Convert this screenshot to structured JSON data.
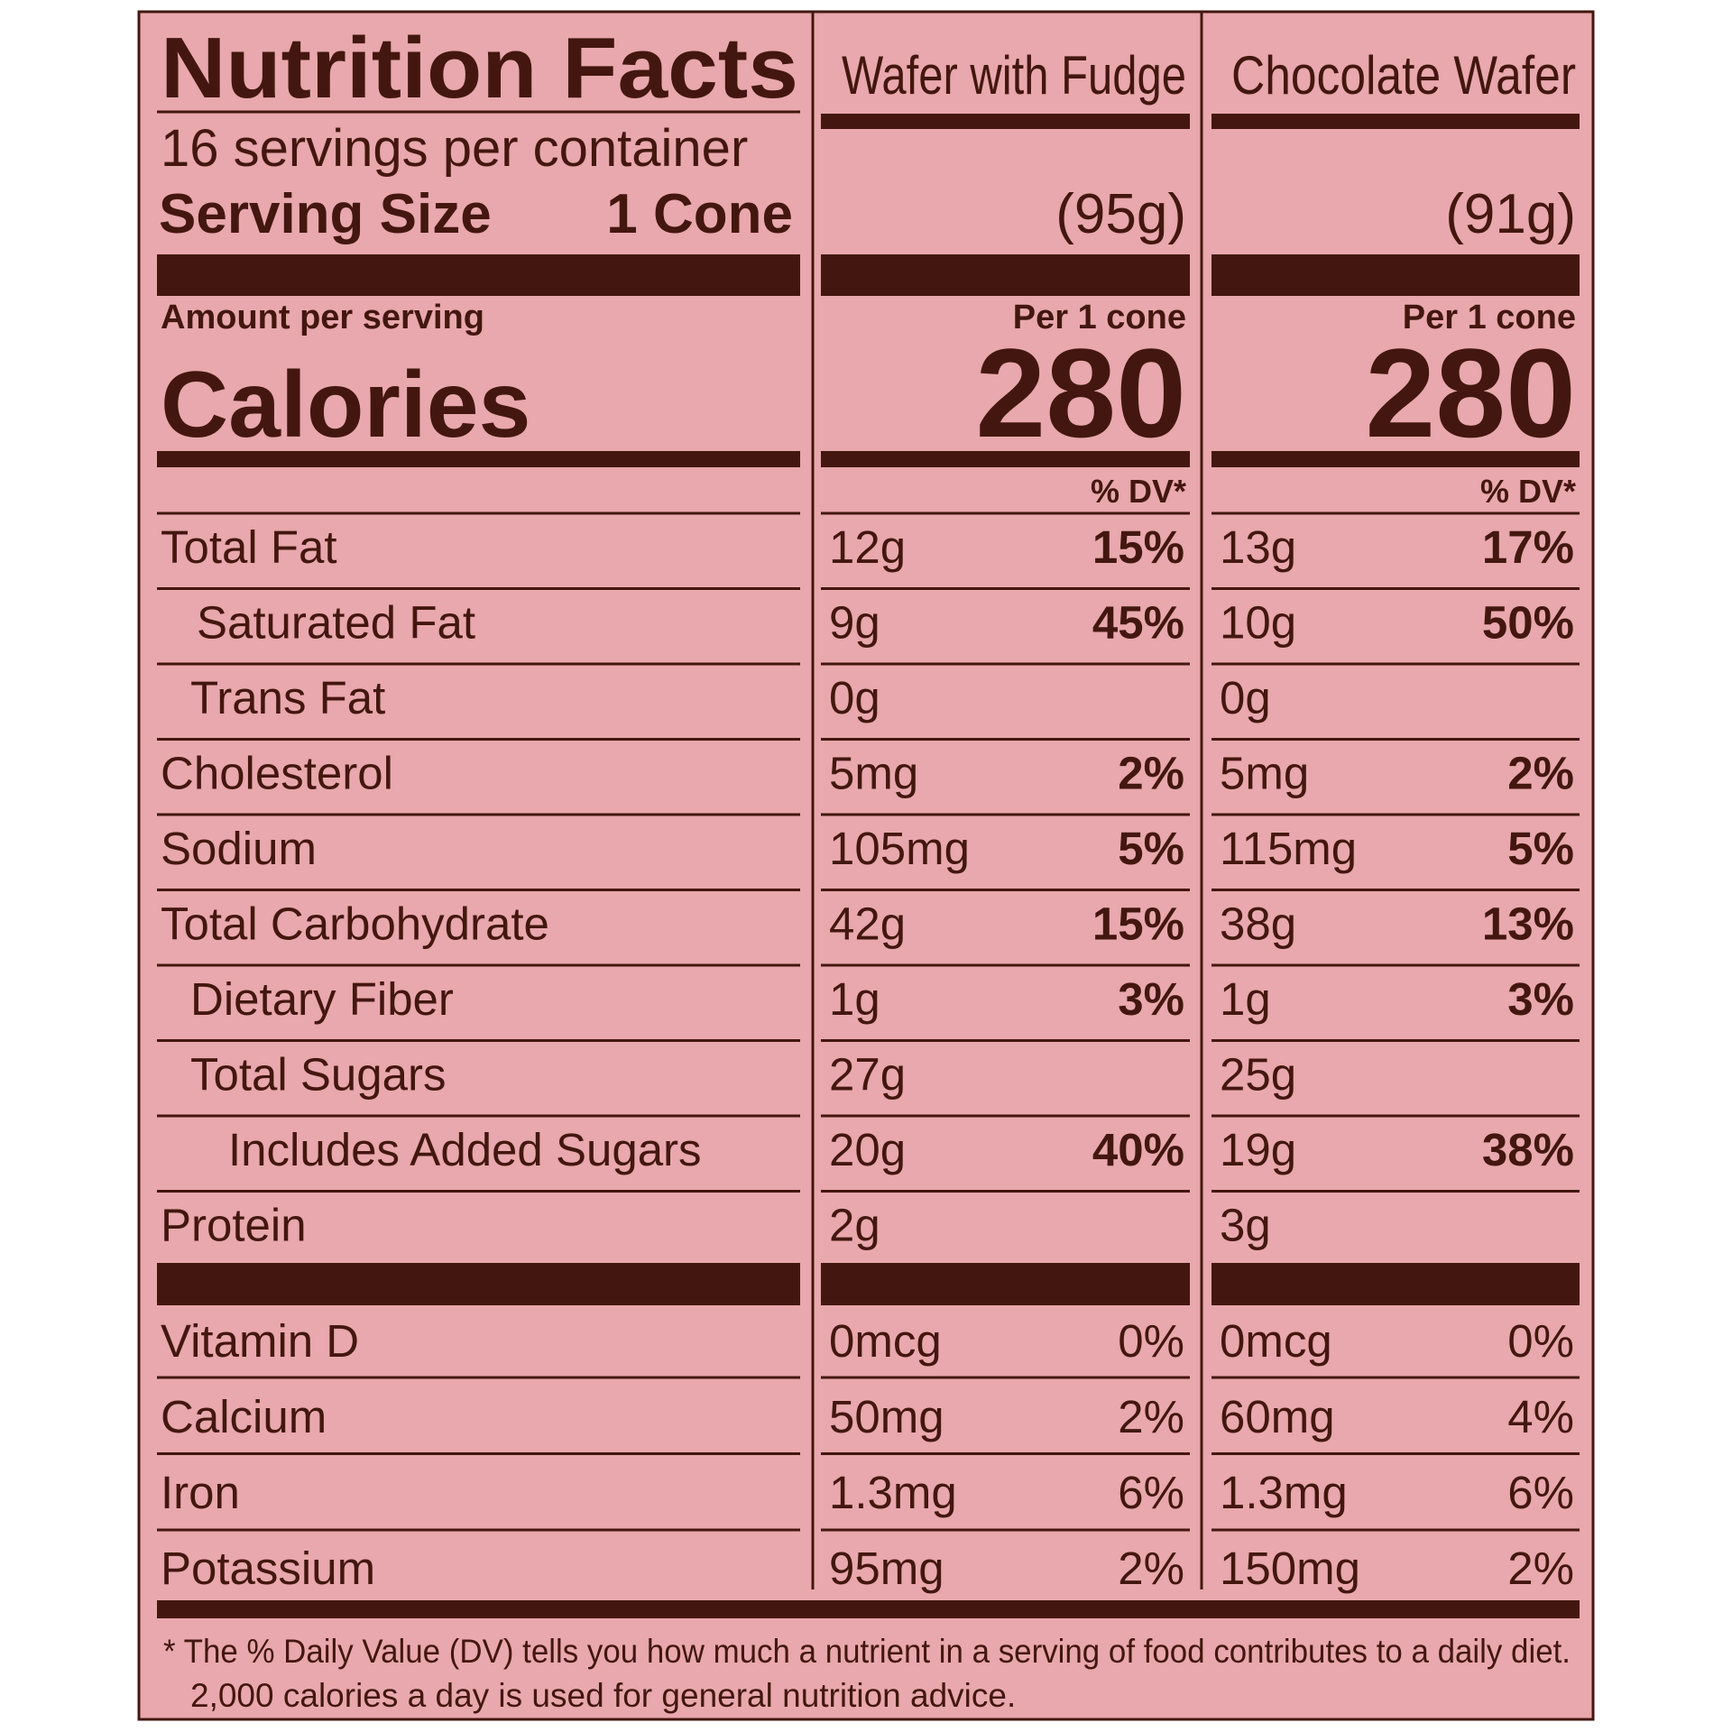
{
  "header": {
    "title": "Nutrition Facts",
    "servings": "16 servings per container",
    "serving_size_label": "Serving Size",
    "serving_size": "1 Cone",
    "amount_per_serving": "Amount per serving",
    "calories_label": "Calories"
  },
  "products": [
    {
      "name": "Wafer with Fudge",
      "weight": "(95g)",
      "per": "Per 1 cone",
      "calories": 280,
      "dv_header": "% DV*"
    },
    {
      "name": "Chocolate Wafer",
      "weight": "(91g)",
      "per": "Per 1 cone",
      "calories": 280,
      "dv_header": "% DV*"
    }
  ],
  "nutrients": [
    {
      "label": "Total Fat",
      "values": [
        {
          "amount": "12g",
          "dv": "15%"
        },
        {
          "amount": "13g",
          "dv": "17%"
        }
      ]
    },
    {
      "label": "Saturated Fat",
      "values": [
        {
          "amount": "9g",
          "dv": "45%"
        },
        {
          "amount": "10g",
          "dv": "50%"
        }
      ]
    },
    {
      "label": "Trans Fat",
      "values": [
        {
          "amount": "0g"
        },
        {
          "amount": "0g"
        }
      ]
    },
    {
      "label": "Cholesterol",
      "values": [
        {
          "amount": "5mg",
          "dv": "2%"
        },
        {
          "amount": "5mg",
          "dv": "2%"
        }
      ]
    },
    {
      "label": "Sodium",
      "values": [
        {
          "amount": "105mg",
          "dv": "5%"
        },
        {
          "amount": "115mg",
          "dv": "5%"
        }
      ]
    },
    {
      "label": "Total Carbohydrate",
      "values": [
        {
          "amount": "42g",
          "dv": "15%"
        },
        {
          "amount": "38g",
          "dv": "13%"
        }
      ]
    },
    {
      "label": "Dietary Fiber",
      "values": [
        {
          "amount": "1g",
          "dv": "3%"
        },
        {
          "amount": "1g",
          "dv": "3%"
        }
      ]
    },
    {
      "label": "Total Sugars",
      "values": [
        {
          "amount": "27g"
        },
        {
          "amount": "25g"
        }
      ]
    },
    {
      "label": "Includes Added Sugars",
      "values": [
        {
          "amount": "20g",
          "dv": "40%"
        },
        {
          "amount": "19g",
          "dv": "38%"
        }
      ]
    },
    {
      "label": "Protein",
      "values": [
        {
          "amount": "2g"
        },
        {
          "amount": "3g"
        }
      ]
    }
  ],
  "vitamins": [
    {
      "label": "Vitamin D",
      "values": [
        {
          "amount": "0mcg",
          "dv": "0%"
        },
        {
          "amount": "0mcg",
          "dv": "0%"
        }
      ]
    },
    {
      "label": "Calcium",
      "values": [
        {
          "amount": "50mg",
          "dv": "2%"
        },
        {
          "amount": "60mg",
          "dv": "4%"
        }
      ]
    },
    {
      "label": "Iron",
      "values": [
        {
          "amount": "1.3mg",
          "dv": "6%"
        },
        {
          "amount": "1.3mg",
          "dv": "6%"
        }
      ]
    },
    {
      "label": "Potassium",
      "values": [
        {
          "amount": "95mg",
          "dv": "2%"
        },
        {
          "amount": "150mg",
          "dv": "2%"
        }
      ]
    }
  ],
  "footnote": [
    "* The % Daily Value (DV) tells you how much a nutrient in a serving of food contributes to a daily diet.",
    "2,000 calories a day is used for general nutrition advice."
  ]
}
